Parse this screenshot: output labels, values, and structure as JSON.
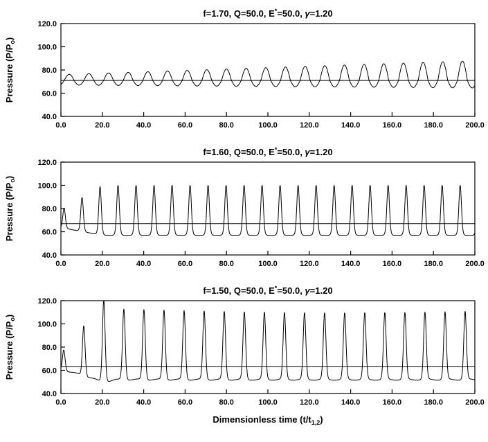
{
  "figure": {
    "background": "#ffffff",
    "line_color": "#000000",
    "n_panels": 3
  },
  "chart_data": [
    {
      "type": "line",
      "title": "f=1.70, Q=50.0, E*=50.0, γ=1.20",
      "title_parts": {
        "pre": "f=1.70, Q=50.0, E",
        "sup": "*",
        "mid": "=50.0, ",
        "gamma": "γ",
        "post": "=1.20"
      },
      "ylabel": "Pressure (P/Po)",
      "ylabel_parts": {
        "pre": "Pressure (P/P",
        "sub": "o",
        "post": ")"
      },
      "xlabel": "",
      "xlim": [
        0,
        200
      ],
      "ylim": [
        40,
        120
      ],
      "xticks": [
        0,
        20,
        40,
        60,
        80,
        100,
        120,
        140,
        160,
        180,
        200
      ],
      "yticks": [
        40,
        60,
        80,
        100,
        120
      ],
      "baseline": 71,
      "waveform": {
        "shape": "asym_sine",
        "period": 9.5,
        "first_peak_t": 4,
        "upper_amp_start": 5,
        "upper_amp_end": 17,
        "lower_amp_start": 4,
        "lower_amp_end": 6.5,
        "peaks_grow_from": 76,
        "peaks_grow_to": 88,
        "troughs_from": 67,
        "troughs_to": 64.5
      }
    },
    {
      "type": "line",
      "title": "f=1.60, Q=50.0, E*=50.0, γ=1.20",
      "title_parts": {
        "pre": "f=1.60, Q=50.0, E",
        "sup": "*",
        "mid": "=50.0, ",
        "gamma": "γ",
        "post": "=1.20"
      },
      "ylabel": "Pressure (P/Po)",
      "ylabel_parts": {
        "pre": "Pressure (P/P",
        "sub": "o",
        "post": ")"
      },
      "xlabel": "",
      "xlim": [
        0,
        200
      ],
      "ylim": [
        40,
        120
      ],
      "xticks": [
        0,
        20,
        40,
        60,
        80,
        100,
        120,
        140,
        160,
        180,
        200
      ],
      "yticks": [
        40,
        60,
        80,
        100,
        120
      ],
      "baseline": 67,
      "waveform": {
        "shape": "spike",
        "period": 8.7,
        "first_peak_t": 1.5,
        "sharpness": 5,
        "steady_peak": 100,
        "steady_trough": 57,
        "ramp_start": 0.35,
        "ramp_time": 20
      }
    },
    {
      "type": "line",
      "title": "f=1.50, Q=50.0, E*=50.0, γ=1.20",
      "title_parts": {
        "pre": "f=1.50, Q=50.0, E",
        "sup": "*",
        "mid": "=50.0, ",
        "gamma": "γ",
        "post": "=1.20"
      },
      "ylabel": "Pressure (P/Po)",
      "ylabel_parts": {
        "pre": "Pressure (P/P",
        "sub": "o",
        "post": ")"
      },
      "xlabel": "Dimensionless time (t/t1,2)",
      "xlabel_parts": {
        "pre": "Dimensionless time (t/t",
        "sub": "1,2",
        "post": ")"
      },
      "xlim": [
        0,
        200
      ],
      "ylim": [
        40,
        120
      ],
      "xticks": [
        0,
        20,
        40,
        60,
        80,
        100,
        120,
        140,
        160,
        180,
        200
      ],
      "yticks": [
        40,
        60,
        80,
        100,
        120
      ],
      "baseline": 63,
      "waveform": {
        "shape": "spike",
        "period": 9.7,
        "first_peak_t": 11,
        "sharpness": 6,
        "steady_peak": 112,
        "steady_trough": 52,
        "ramp_start": 0.2,
        "ramp_time": 18,
        "overshoot": 0.15,
        "overshoot_t": 21,
        "overshoot_width": 4,
        "jitter": 0.05
      }
    }
  ]
}
